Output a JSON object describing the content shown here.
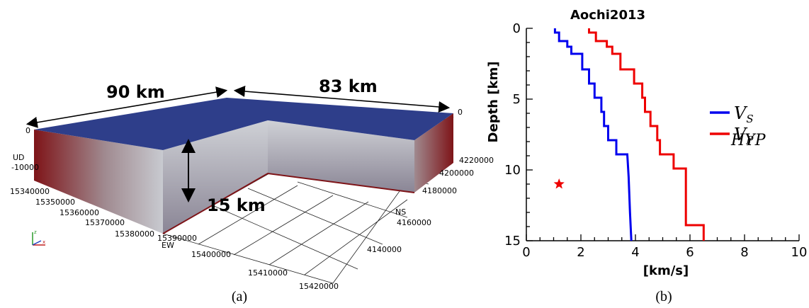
{
  "panel_a": {
    "caption": "(a)",
    "dim_ew": "90 km",
    "dim_ns": "83 km",
    "dim_depth": "15 km",
    "top_zero_left": "0",
    "top_zero_right": "0",
    "ud_label": "UD",
    "ud_value": "-10000",
    "ew_label": "EW",
    "ns_label": "NS",
    "ew_ticks": [
      "15340000",
      "15350000",
      "15360000",
      "15370000",
      "15380000",
      "15390000",
      "15400000",
      "15410000",
      "15420000"
    ],
    "ns_ticks": [
      "4220000",
      "4200000",
      "4180000",
      "4160000",
      "4140000"
    ],
    "colors": {
      "top": "#2e3e8a",
      "side_deep": "#7e1418",
      "side_shallow": "#b5b8bf",
      "inner_shallow": "#c7c9cf",
      "inner_deep": "#8e8e9e"
    }
  },
  "panel_b": {
    "caption": "(b)",
    "chart_data": {
      "type": "line",
      "title": "Aochi2013",
      "xlabel": "[km/s]",
      "ylabel": "Depth [km]",
      "xlim": [
        0,
        10
      ],
      "ylim": [
        15,
        0
      ],
      "xticks": [
        "0",
        "2",
        "4",
        "6",
        "8",
        "10"
      ],
      "yticks": [
        "0",
        "5",
        "10",
        "15"
      ],
      "series": [
        {
          "name": "V_S",
          "label_main": "V",
          "label_sub": "S",
          "color": "#0000ee",
          "points": [
            [
              1.05,
              0
            ],
            [
              1.05,
              0.3
            ],
            [
              1.2,
              0.3
            ],
            [
              1.2,
              0.9
            ],
            [
              1.5,
              0.9
            ],
            [
              1.5,
              1.3
            ],
            [
              1.65,
              1.3
            ],
            [
              1.65,
              1.8
            ],
            [
              2.05,
              1.8
            ],
            [
              2.05,
              2.9
            ],
            [
              2.3,
              2.9
            ],
            [
              2.3,
              3.9
            ],
            [
              2.5,
              3.9
            ],
            [
              2.5,
              4.9
            ],
            [
              2.75,
              4.9
            ],
            [
              2.75,
              5.9
            ],
            [
              2.85,
              5.9
            ],
            [
              2.85,
              6.9
            ],
            [
              3.0,
              6.9
            ],
            [
              3.0,
              7.9
            ],
            [
              3.3,
              7.9
            ],
            [
              3.3,
              8.9
            ],
            [
              3.7,
              8.9
            ],
            [
              3.75,
              10.5
            ],
            [
              3.8,
              13.0
            ],
            [
              3.85,
              15.0
            ]
          ]
        },
        {
          "name": "V_P",
          "label_main": "V",
          "label_sub": "P",
          "color": "#ee0000",
          "points": [
            [
              2.3,
              0
            ],
            [
              2.3,
              0.3
            ],
            [
              2.55,
              0.3
            ],
            [
              2.55,
              0.9
            ],
            [
              2.95,
              0.9
            ],
            [
              2.95,
              1.3
            ],
            [
              3.15,
              1.3
            ],
            [
              3.15,
              1.8
            ],
            [
              3.45,
              1.8
            ],
            [
              3.45,
              2.9
            ],
            [
              3.95,
              2.9
            ],
            [
              3.95,
              3.9
            ],
            [
              4.25,
              3.9
            ],
            [
              4.25,
              4.9
            ],
            [
              4.35,
              4.9
            ],
            [
              4.35,
              5.9
            ],
            [
              4.55,
              5.9
            ],
            [
              4.55,
              6.9
            ],
            [
              4.8,
              6.9
            ],
            [
              4.8,
              7.9
            ],
            [
              4.9,
              7.9
            ],
            [
              4.9,
              8.9
            ],
            [
              5.4,
              8.9
            ],
            [
              5.4,
              9.9
            ],
            [
              5.85,
              9.9
            ],
            [
              5.85,
              13.9
            ],
            [
              6.5,
              13.9
            ],
            [
              6.5,
              15.0
            ]
          ]
        }
      ],
      "hypocenter": {
        "name": "HYP",
        "label": "HYP",
        "x": 1.2,
        "y": 11.0,
        "color": "#ee0000"
      },
      "legend_position": "right"
    }
  }
}
